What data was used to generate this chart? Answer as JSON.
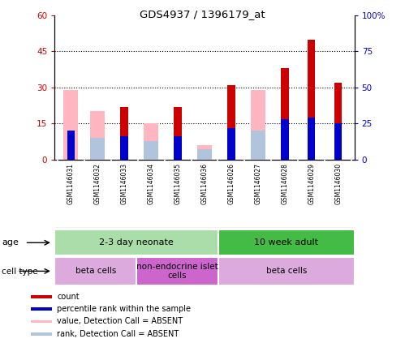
{
  "title": "GDS4937 / 1396179_at",
  "samples": [
    "GSM1146031",
    "GSM1146032",
    "GSM1146033",
    "GSM1146034",
    "GSM1146035",
    "GSM1146036",
    "GSM1146026",
    "GSM1146027",
    "GSM1146028",
    "GSM1146029",
    "GSM1146030"
  ],
  "count_values": [
    0,
    0,
    22,
    0,
    22,
    0,
    31,
    0,
    38,
    50,
    32
  ],
  "percentile_rank": [
    20,
    0,
    16,
    0,
    16,
    0,
    22,
    0,
    28,
    29,
    25
  ],
  "absent_value": [
    29,
    20,
    0,
    15,
    0,
    6,
    0,
    29,
    0,
    0,
    0
  ],
  "absent_rank": [
    0,
    15,
    0,
    13,
    0,
    7,
    0,
    20,
    0,
    0,
    0
  ],
  "ylim_left": [
    0,
    60
  ],
  "ylim_right": [
    0,
    100
  ],
  "yticks_left": [
    0,
    15,
    30,
    45,
    60
  ],
  "yticks_right": [
    0,
    25,
    50,
    75,
    100
  ],
  "ytick_labels_left": [
    "0",
    "15",
    "30",
    "45",
    "60"
  ],
  "ytick_labels_right": [
    "0",
    "25",
    "50",
    "75",
    "100%"
  ],
  "age_groups": [
    {
      "label": "2-3 day neonate",
      "start": 0,
      "end": 6,
      "color": "#aaddaa"
    },
    {
      "label": "10 week adult",
      "start": 6,
      "end": 11,
      "color": "#44bb44"
    }
  ],
  "cell_type_groups": [
    {
      "label": "beta cells",
      "start": 0,
      "end": 3,
      "color": "#ddaadd"
    },
    {
      "label": "non-endocrine islet\ncells",
      "start": 3,
      "end": 6,
      "color": "#cc66cc"
    },
    {
      "label": "beta cells",
      "start": 6,
      "end": 11,
      "color": "#ddaadd"
    }
  ],
  "color_count": "#CC0000",
  "color_rank": "#0000CC",
  "color_absent_value": "#FFB6C1",
  "color_absent_rank": "#B0C4DE",
  "legend_items": [
    {
      "label": "count",
      "color": "#CC0000"
    },
    {
      "label": "percentile rank within the sample",
      "color": "#0000CC"
    },
    {
      "label": "value, Detection Call = ABSENT",
      "color": "#FFB6C1"
    },
    {
      "label": "rank, Detection Call = ABSENT",
      "color": "#B0C4DE"
    }
  ],
  "background_color": "#FFFFFF"
}
